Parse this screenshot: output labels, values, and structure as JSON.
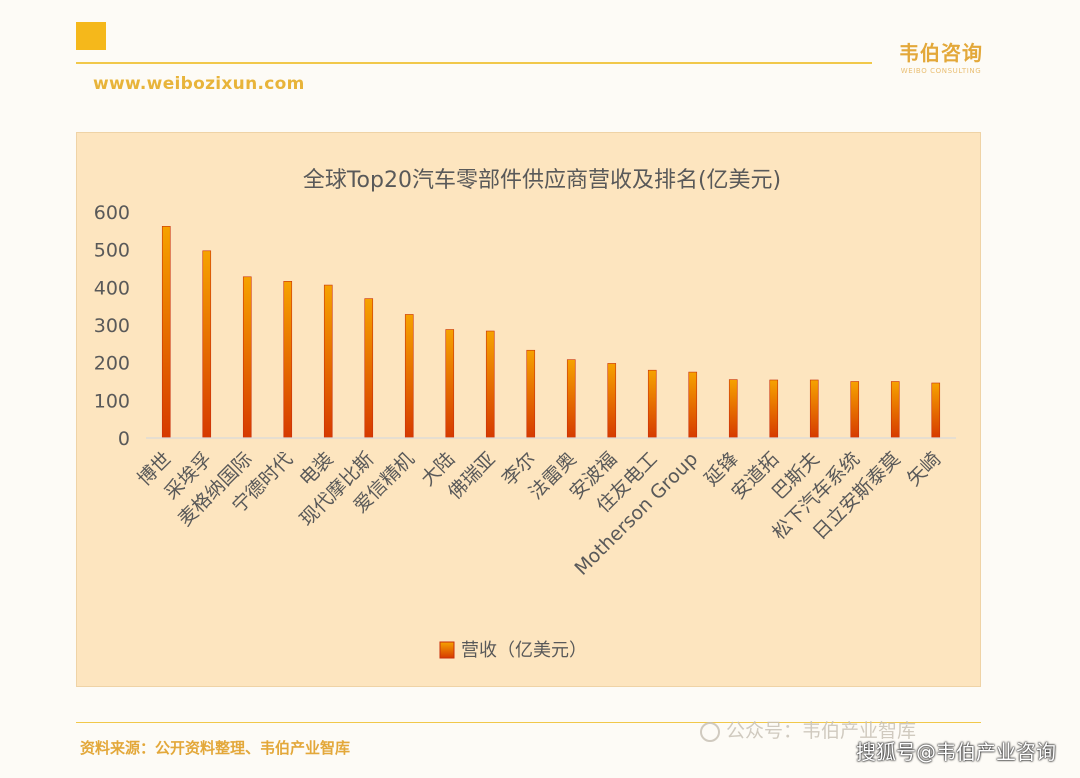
{
  "header": {
    "url": "www.weibozixun.com",
    "brand_cn": "韦伯咨询",
    "brand_en": "WEIBO CONSULTING"
  },
  "footer": {
    "source": "资料来源：公开资料整理、韦伯产业智库",
    "watermark_wechat": "公众号：韦伯产业智库",
    "watermark_sohu": "搜狐号@韦伯产业咨询"
  },
  "chart_data": {
    "type": "bar",
    "title": "全球Top20汽车零部件供应商营收及排名(亿美元)",
    "xlabel": "",
    "ylabel": "",
    "ylim": [
      0,
      600
    ],
    "yticks": [
      0,
      100,
      200,
      300,
      400,
      500,
      600
    ],
    "grid": false,
    "legend_position": "bottom",
    "categories": [
      "博世",
      "采埃孚",
      "麦格纳国际",
      "宁德时代",
      "电装",
      "现代摩比斯",
      "爱信精机",
      "大陆",
      "佛瑞亚",
      "李尔",
      "法雷奥",
      "安波福",
      "住友电工",
      "Motherson Group",
      "延锋",
      "安道拓",
      "巴斯夫",
      "松下汽车系统",
      "日立安斯泰莫",
      "矢崎"
    ],
    "series": [
      {
        "name": "营收（亿美元）",
        "values": [
          562,
          497,
          428,
          416,
          406,
          370,
          328,
          288,
          284,
          233,
          208,
          198,
          180,
          175,
          155,
          154,
          154,
          150,
          150,
          146
        ]
      }
    ],
    "colors": {
      "bar_top": "#f6a200",
      "bar_bottom": "#d63a00",
      "bar_edge": "#c8300a",
      "text": "#595959",
      "axis": "#d9d9d9"
    }
  }
}
